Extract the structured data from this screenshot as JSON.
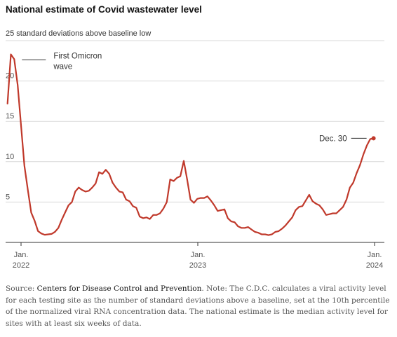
{
  "chart_data": {
    "type": "line",
    "title": "National estimate of Covid wastewater level",
    "ylabel": "25 standard deviations above baseline low",
    "ylim": [
      0,
      25
    ],
    "yticks": [
      5,
      10,
      15,
      20
    ],
    "xlim": [
      "2021-12-01",
      "2024-01-13"
    ],
    "xticks": [
      {
        "date": "2022-01-01",
        "line1": "Jan.",
        "line2": "2022"
      },
      {
        "date": "2023-01-01",
        "line1": "Jan.",
        "line2": "2023"
      },
      {
        "date": "2024-01-01",
        "line1": "Jan.",
        "line2": "2024"
      }
    ],
    "grid": true,
    "series": [
      {
        "color": "#c0392b",
        "points": [
          [
            "2021-12-04",
            17.2
          ],
          [
            "2021-12-11",
            23.3
          ],
          [
            "2021-12-18",
            22.7
          ],
          [
            "2021-12-25",
            19.5
          ],
          [
            "2022-01-01",
            14.5
          ],
          [
            "2022-01-08",
            9.5
          ],
          [
            "2022-01-15",
            6.5
          ],
          [
            "2022-01-22",
            3.7
          ],
          [
            "2022-01-29",
            2.7
          ],
          [
            "2022-02-05",
            1.4
          ],
          [
            "2022-02-12",
            1.1
          ],
          [
            "2022-02-19",
            0.95
          ],
          [
            "2022-02-26",
            1.0
          ],
          [
            "2022-03-05",
            1.05
          ],
          [
            "2022-03-12",
            1.3
          ],
          [
            "2022-03-19",
            1.8
          ],
          [
            "2022-03-26",
            2.8
          ],
          [
            "2022-04-02",
            3.7
          ],
          [
            "2022-04-09",
            4.6
          ],
          [
            "2022-04-16",
            5.0
          ],
          [
            "2022-04-23",
            6.3
          ],
          [
            "2022-04-30",
            6.8
          ],
          [
            "2022-05-07",
            6.5
          ],
          [
            "2022-05-14",
            6.3
          ],
          [
            "2022-05-21",
            6.4
          ],
          [
            "2022-05-28",
            6.8
          ],
          [
            "2022-06-04",
            7.3
          ],
          [
            "2022-06-11",
            8.7
          ],
          [
            "2022-06-18",
            8.5
          ],
          [
            "2022-06-25",
            9.0
          ],
          [
            "2022-07-02",
            8.5
          ],
          [
            "2022-07-09",
            7.4
          ],
          [
            "2022-07-16",
            6.8
          ],
          [
            "2022-07-23",
            6.3
          ],
          [
            "2022-07-30",
            6.2
          ],
          [
            "2022-08-06",
            5.3
          ],
          [
            "2022-08-13",
            5.1
          ],
          [
            "2022-08-20",
            4.5
          ],
          [
            "2022-08-27",
            4.3
          ],
          [
            "2022-09-03",
            3.2
          ],
          [
            "2022-09-10",
            3.0
          ],
          [
            "2022-09-17",
            3.1
          ],
          [
            "2022-09-24",
            2.9
          ],
          [
            "2022-10-01",
            3.4
          ],
          [
            "2022-10-08",
            3.4
          ],
          [
            "2022-10-15",
            3.6
          ],
          [
            "2022-10-22",
            4.2
          ],
          [
            "2022-10-29",
            5.0
          ],
          [
            "2022-11-05",
            7.8
          ],
          [
            "2022-11-12",
            7.6
          ],
          [
            "2022-11-19",
            8.0
          ],
          [
            "2022-11-26",
            8.2
          ],
          [
            "2022-12-03",
            10.1
          ],
          [
            "2022-12-10",
            7.8
          ],
          [
            "2022-12-17",
            5.3
          ],
          [
            "2022-12-24",
            4.9
          ],
          [
            "2022-12-31",
            5.4
          ],
          [
            "2023-01-07",
            5.5
          ],
          [
            "2023-01-14",
            5.5
          ],
          [
            "2023-01-21",
            5.7
          ],
          [
            "2023-01-28",
            5.2
          ],
          [
            "2023-02-04",
            4.6
          ],
          [
            "2023-02-11",
            3.9
          ],
          [
            "2023-02-18",
            4.0
          ],
          [
            "2023-02-25",
            4.1
          ],
          [
            "2023-03-04",
            3.0
          ],
          [
            "2023-03-11",
            2.6
          ],
          [
            "2023-03-18",
            2.5
          ],
          [
            "2023-03-25",
            2.0
          ],
          [
            "2023-04-01",
            1.8
          ],
          [
            "2023-04-08",
            1.8
          ],
          [
            "2023-04-15",
            1.9
          ],
          [
            "2023-04-22",
            1.6
          ],
          [
            "2023-04-29",
            1.3
          ],
          [
            "2023-05-06",
            1.2
          ],
          [
            "2023-05-13",
            1.0
          ],
          [
            "2023-05-20",
            1.0
          ],
          [
            "2023-05-27",
            0.9
          ],
          [
            "2023-06-03",
            1.0
          ],
          [
            "2023-06-10",
            1.3
          ],
          [
            "2023-06-17",
            1.4
          ],
          [
            "2023-06-24",
            1.7
          ],
          [
            "2023-07-01",
            2.1
          ],
          [
            "2023-07-08",
            2.6
          ],
          [
            "2023-07-15",
            3.1
          ],
          [
            "2023-07-22",
            4.0
          ],
          [
            "2023-07-29",
            4.4
          ],
          [
            "2023-08-05",
            4.5
          ],
          [
            "2023-08-12",
            5.2
          ],
          [
            "2023-08-19",
            5.9
          ],
          [
            "2023-08-26",
            5.1
          ],
          [
            "2023-09-02",
            4.8
          ],
          [
            "2023-09-09",
            4.6
          ],
          [
            "2023-09-16",
            4.1
          ],
          [
            "2023-09-23",
            3.4
          ],
          [
            "2023-09-30",
            3.5
          ],
          [
            "2023-10-07",
            3.6
          ],
          [
            "2023-10-14",
            3.6
          ],
          [
            "2023-10-21",
            4.0
          ],
          [
            "2023-10-28",
            4.4
          ],
          [
            "2023-11-04",
            5.3
          ],
          [
            "2023-11-11",
            6.8
          ],
          [
            "2023-11-18",
            7.4
          ],
          [
            "2023-11-25",
            8.6
          ],
          [
            "2023-12-02",
            9.6
          ],
          [
            "2023-12-09",
            10.9
          ],
          [
            "2023-12-16",
            12.0
          ],
          [
            "2023-12-23",
            12.8
          ],
          [
            "2023-12-30",
            12.9
          ]
        ]
      }
    ],
    "annotations": [
      {
        "text_lines": [
          "First Omicron",
          "wave"
        ],
        "target": [
          "2021-12-18",
          22.7
        ],
        "anchor": "right-of-peak"
      },
      {
        "text_lines": [
          "Dec. 30"
        ],
        "target": [
          "2023-12-30",
          12.9
        ],
        "anchor": "left-of-endpoint"
      }
    ]
  },
  "source": {
    "label": "Source:",
    "name": "Centers for Disease Control and Prevention",
    "note_label": "Note:",
    "note": "The C.D.C. calculates a viral activity level for each testing site as the number of standard deviations above a baseline, set at the 10th percentile of the normalized viral RNA concentration data. The national estimate is the median activity level for sites with at least six weeks of data."
  }
}
